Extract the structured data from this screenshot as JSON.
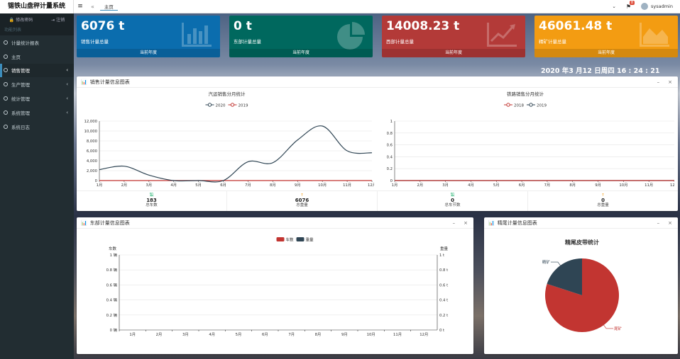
{
  "app": {
    "title": "锡铁山盘秤计量系统"
  },
  "sidebar": {
    "change_password": "修改密码",
    "logout": "注销",
    "section": "功能列表",
    "items": [
      {
        "label": "计量统计报表",
        "arrow": ""
      },
      {
        "label": "主页",
        "arrow": ""
      },
      {
        "label": "销售管理",
        "arrow": "‹"
      },
      {
        "label": "生产管理",
        "arrow": "‹"
      },
      {
        "label": "统计管理",
        "arrow": "‹"
      },
      {
        "label": "系统管理",
        "arrow": "‹"
      },
      {
        "label": "系统日志",
        "arrow": ""
      }
    ]
  },
  "topbar": {
    "menu_icon": "≡",
    "nav_prev": "«",
    "home_tab": "主页",
    "caret": "⌄",
    "notif_count": "8",
    "username": "sysadmin"
  },
  "stats": [
    {
      "value": "6076 t",
      "label": "销售计量总量",
      "footer": "当前年度",
      "color": "#0b6dae"
    },
    {
      "value": "0 t",
      "label": "东部计量总量",
      "footer": "当前年度",
      "color": "#00685e"
    },
    {
      "value": "14008.23 t",
      "label": "西部计量总量",
      "footer": "当前年度",
      "color": "#b33a38"
    },
    {
      "value": "46061.48 t",
      "label": "精矿计量总量",
      "footer": "当前年度",
      "color": "#f39c12"
    }
  ],
  "datetime": "2020 年3 月12 日周四  16 : 24 : 21",
  "panels": {
    "sales": {
      "title": "销售计量信息图表",
      "bottom": [
        {
          "tag": "铅",
          "tag_color": "#00a65a",
          "num": "183",
          "label": "总车数"
        },
        {
          "tag": "↑",
          "tag_color": "#f39c12",
          "num": "6076",
          "label": "总重量"
        },
        {
          "tag": "铅",
          "tag_color": "#00a65a",
          "num": "0",
          "label": "总车节数"
        },
        {
          "tag": "↑",
          "tag_color": "#f39c12",
          "num": "0",
          "label": "总重量"
        }
      ]
    },
    "east": {
      "title": "东部计量信息图表"
    },
    "tailings": {
      "title": "精尾计量信息图表"
    }
  },
  "controls": {
    "minimize": "–",
    "close": "×"
  },
  "chart_data": [
    {
      "type": "line",
      "title": "汽运销售分月统计",
      "categories": [
        "1月",
        "2月",
        "3月",
        "4月",
        "5月",
        "6月",
        "7月",
        "8月",
        "9月",
        "10月",
        "11月",
        "12月"
      ],
      "series": [
        {
          "name": "2020",
          "color": "#2f4554",
          "values": [
            2200,
            2900,
            1100,
            0,
            0,
            0,
            3800,
            3600,
            8200,
            11000,
            6000,
            5600
          ]
        },
        {
          "name": "2019",
          "color": "#c23531",
          "values": [
            0,
            0,
            0,
            0,
            0,
            0,
            0,
            0,
            0,
            0,
            0,
            0
          ]
        }
      ],
      "ylim": [
        0,
        12000
      ],
      "yticks": [
        "0",
        "2,000",
        "4,000",
        "6,000",
        "8,000",
        "10,000",
        "12,000"
      ],
      "legend": "top-center"
    },
    {
      "type": "line",
      "title": "铁路销售分月统计",
      "categories": [
        "1月",
        "2月",
        "3月",
        "4月",
        "5月",
        "6月",
        "7月",
        "8月",
        "9月",
        "10月",
        "11月",
        "12月"
      ],
      "series": [
        {
          "name": "2018",
          "color": "#c23531",
          "values": [
            0,
            0,
            0,
            0,
            0,
            0,
            0,
            0,
            0,
            0,
            0,
            0
          ]
        },
        {
          "name": "2019",
          "color": "#2f4554",
          "values": [
            0,
            0,
            0,
            0,
            0,
            0,
            0,
            0,
            0,
            0,
            0,
            0
          ]
        }
      ],
      "ylim": [
        0,
        1
      ],
      "yticks": [
        "0",
        "0.2",
        "0.4",
        "0.6",
        "0.8",
        "1"
      ],
      "legend": "top-center"
    },
    {
      "type": "bar",
      "categories": [
        "1月",
        "2月",
        "3月",
        "4月",
        "5月",
        "6月",
        "7月",
        "8月",
        "9月",
        "10月",
        "11月",
        "12月"
      ],
      "series": [
        {
          "name": "车数",
          "color": "#c23531",
          "values": [
            0,
            0,
            0,
            0,
            0,
            0,
            0,
            0,
            0,
            0,
            0,
            0
          ]
        },
        {
          "name": "重量",
          "color": "#2f4554",
          "values": [
            0,
            0,
            0,
            0,
            0,
            0,
            0,
            0,
            0,
            0,
            0,
            0
          ]
        }
      ],
      "ylabel_left": "车数",
      "ylabel_right": "重量",
      "yticks_left": [
        "0 辆",
        "0.2 辆",
        "0.4 辆",
        "0.6 辆",
        "0.8 辆",
        "1 辆"
      ],
      "yticks_right": [
        "0 t",
        "0.2 t",
        "0.4 t",
        "0.6 t",
        "0.8 t",
        "1 t"
      ],
      "legend": "top-center"
    },
    {
      "type": "pie",
      "title": "精尾皮带统计",
      "slices": [
        {
          "name": "尾矿",
          "value": 80,
          "color": "#c23531"
        },
        {
          "name": "精矿",
          "value": 20,
          "color": "#2f4554"
        }
      ]
    }
  ]
}
